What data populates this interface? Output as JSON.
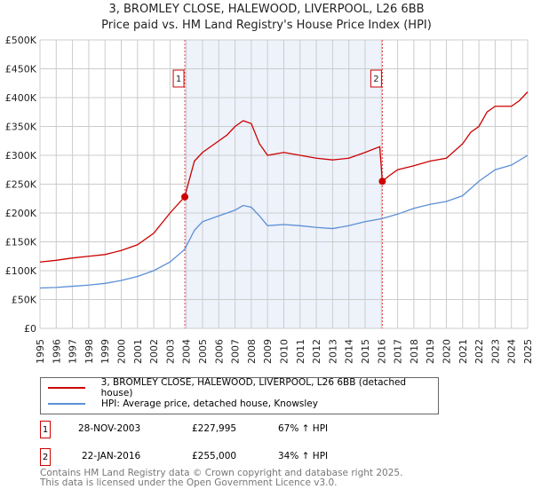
{
  "chart_data": {
    "type": "line",
    "title": "3, BROMLEY CLOSE, HALEWOOD, LIVERPOOL, L26 6BB",
    "subtitle": "Price paid vs. HM Land Registry's House Price Index (HPI)",
    "xlim": [
      1995,
      2025
    ],
    "ylim": [
      0,
      500000
    ],
    "x_ticks": [
      "1995",
      "1996",
      "1997",
      "1998",
      "1999",
      "2000",
      "2001",
      "2002",
      "2003",
      "2004",
      "2005",
      "2006",
      "2007",
      "2008",
      "2009",
      "2010",
      "2011",
      "2012",
      "2013",
      "2014",
      "2015",
      "2016",
      "2017",
      "2018",
      "2019",
      "2020",
      "2021",
      "2022",
      "2023",
      "2024",
      "2025"
    ],
    "y_ticks": [
      {
        "v": 0,
        "label": "£0"
      },
      {
        "v": 50000,
        "label": "£50K"
      },
      {
        "v": 100000,
        "label": "£100K"
      },
      {
        "v": 150000,
        "label": "£150K"
      },
      {
        "v": 200000,
        "label": "£200K"
      },
      {
        "v": 250000,
        "label": "£250K"
      },
      {
        "v": 300000,
        "label": "£300K"
      },
      {
        "v": 350000,
        "label": "£350K"
      },
      {
        "v": 400000,
        "label": "£400K"
      },
      {
        "v": 450000,
        "label": "£450K"
      },
      {
        "v": 500000,
        "label": "£500K"
      }
    ],
    "grid": true,
    "series": [
      {
        "name": "3, BROMLEY CLOSE, HALEWOOD, LIVERPOOL, L26 6BB (detached house)",
        "color": "#cc0000",
        "x": [
          1995,
          1996,
          1997,
          1998,
          1999,
          2000,
          2001,
          2002,
          2003,
          2003.9,
          2004.5,
          2005,
          2006,
          2006.5,
          2007,
          2007.5,
          2008,
          2008.5,
          2009,
          2010,
          2011,
          2012,
          2013,
          2014,
          2015,
          2015.9,
          2016.06,
          2016.5,
          2017,
          2018,
          2019,
          2020,
          2021,
          2021.5,
          2022,
          2022.5,
          2023,
          2024,
          2024.5,
          2025
        ],
        "y": [
          115000,
          118000,
          122000,
          125000,
          128000,
          135000,
          145000,
          165000,
          200000,
          227995,
          290000,
          305000,
          325000,
          335000,
          350000,
          360000,
          355000,
          320000,
          300000,
          305000,
          300000,
          295000,
          292000,
          295000,
          305000,
          315000,
          255000,
          265000,
          275000,
          282000,
          290000,
          295000,
          320000,
          340000,
          350000,
          375000,
          385000,
          385000,
          395000,
          410000
        ]
      },
      {
        "name": "HPI: Average price, detached house, Knowsley",
        "color": "#5b8fd6",
        "x": [
          1995,
          1996,
          1997,
          1998,
          1999,
          2000,
          2001,
          2002,
          2003,
          2003.9,
          2004.5,
          2005,
          2006,
          2007,
          2007.5,
          2008,
          2008.5,
          2009,
          2010,
          2011,
          2012,
          2013,
          2014,
          2015,
          2016,
          2017,
          2018,
          2019,
          2020,
          2021,
          2022,
          2023,
          2024,
          2025
        ],
        "y": [
          70000,
          71000,
          73000,
          75000,
          78000,
          83000,
          90000,
          100000,
          115000,
          137000,
          170000,
          185000,
          195000,
          205000,
          213000,
          210000,
          195000,
          178000,
          180000,
          178000,
          175000,
          173000,
          178000,
          185000,
          190000,
          198000,
          208000,
          215000,
          220000,
          230000,
          255000,
          275000,
          283000,
          300000
        ]
      }
    ],
    "annotations": [
      {
        "label": "1",
        "x": 2003.91,
        "y": 227995
      },
      {
        "label": "2",
        "x": 2016.06,
        "y": 255000
      }
    ],
    "shaded_range": [
      2003.91,
      2016.06
    ]
  },
  "legend": {
    "items": [
      "3, BROMLEY CLOSE, HALEWOOD, LIVERPOOL, L26 6BB (detached house)",
      "HPI: Average price, detached house, Knowsley"
    ]
  },
  "transactions": [
    {
      "n": "1",
      "date": "28-NOV-2003",
      "price": "£227,995",
      "hpi": "67% ↑ HPI"
    },
    {
      "n": "2",
      "date": "22-JAN-2016",
      "price": "£255,000",
      "hpi": "34% ↑ HPI"
    }
  ],
  "footer": {
    "line1": "Contains HM Land Registry data © Crown copyright and database right 2025.",
    "line2": "This data is licensed under the Open Government Licence v3.0."
  }
}
